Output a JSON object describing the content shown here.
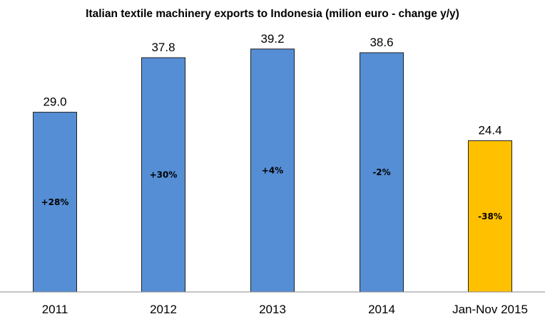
{
  "chart_data": {
    "type": "bar",
    "title": "Italian textile machinery exports to Indonesia (milion euro - change y/y)",
    "categories": [
      "2011",
      "2012",
      "2013",
      "2014",
      "Jan-Nov 2015"
    ],
    "values": [
      29.0,
      37.8,
      39.2,
      38.6,
      24.4
    ],
    "value_labels": [
      "29.0",
      "37.8",
      "39.2",
      "38.6",
      "24.4"
    ],
    "change_labels": [
      "+28%",
      "+30%",
      "+4%",
      "-2%",
      "-38%"
    ],
    "bar_colors": [
      "#558ED5",
      "#558ED5",
      "#558ED5",
      "#558ED5",
      "#FFC000"
    ],
    "ylim": [
      0,
      41.5
    ],
    "grid": false,
    "legend": "none"
  }
}
